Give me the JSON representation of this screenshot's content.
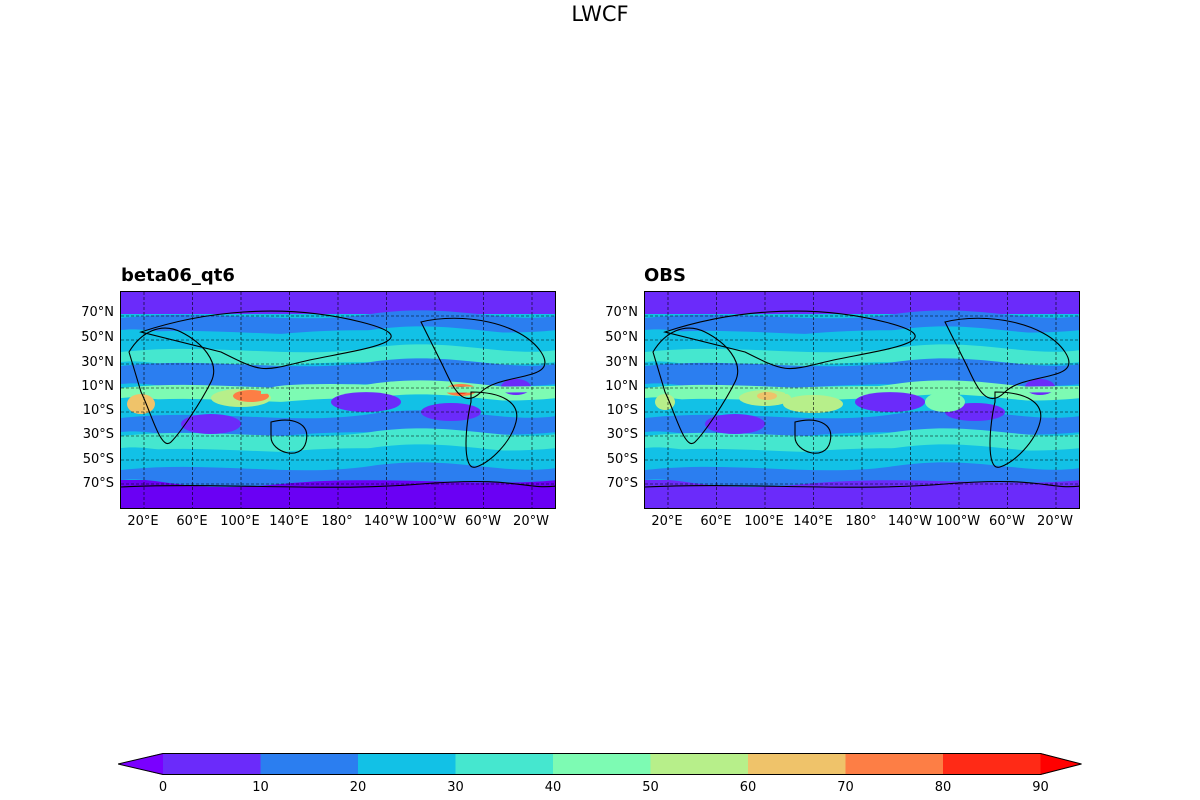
{
  "title": "LWCF",
  "panels": [
    {
      "title": "beta06_qt6",
      "model": "model"
    },
    {
      "title": "OBS",
      "model": "obs"
    }
  ],
  "lat_labels": [
    "70°N",
    "50°N",
    "30°N",
    "10°N",
    "10°S",
    "30°S",
    "50°S",
    "70°S"
  ],
  "lon_labels": [
    "20°E",
    "60°E",
    "100°E",
    "140°E",
    "180°",
    "140°W",
    "100°W",
    "60°W",
    "20°W"
  ],
  "colorbar": {
    "ticks": [
      "0",
      "10",
      "20",
      "30",
      "40",
      "50",
      "60",
      "70",
      "80",
      "90"
    ],
    "colors": [
      "#6a00f4",
      "#6b2bfa",
      "#2b7ef0",
      "#12c1e6",
      "#45e7cf",
      "#7dfbb3",
      "#b7ef8a",
      "#efc36a",
      "#fd7e45",
      "#ff2a16"
    ],
    "over_color": "#ff0000",
    "under_color": "#7a00ff"
  }
}
